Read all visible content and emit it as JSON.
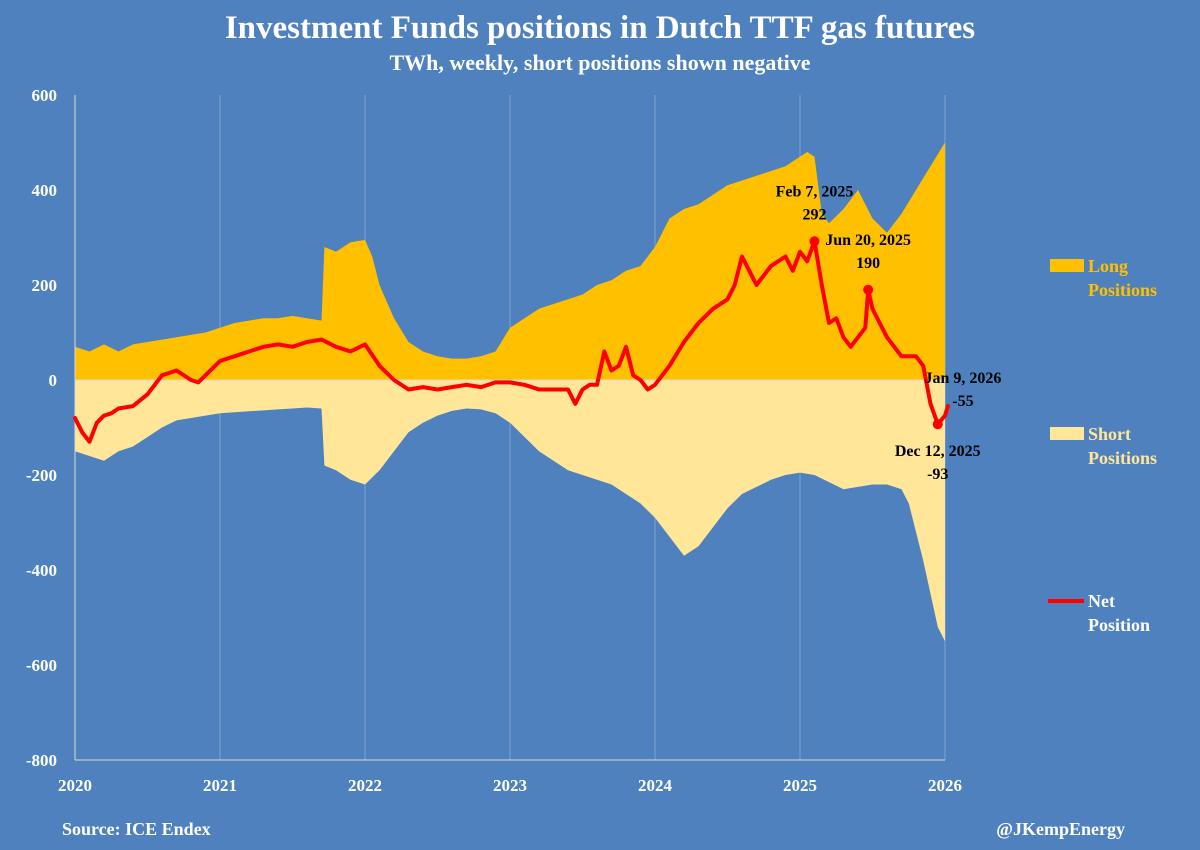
{
  "header": {
    "title": "Investment Funds positions in Dutch TTF gas futures",
    "subtitle": "TWh, weekly, short positions shown negative"
  },
  "footer": {
    "source": "Source: ICE Endex",
    "credit": "@JKempEnergy"
  },
  "legend": {
    "long_line1": "Long",
    "long_line2": "Positions",
    "short_line1": "Short",
    "short_line2": "Positions",
    "net_line1": "Net",
    "net_line2": "Position"
  },
  "annotations": [
    {
      "date_label": "Feb 7, 2025",
      "value_label": "292",
      "x": 2025.1,
      "y": 292
    },
    {
      "date_label": "Jun 20, 2025",
      "value_label": "190",
      "x": 2025.47,
      "y": 190
    },
    {
      "date_label": "Dec 12, 2025",
      "value_label": "-93",
      "x": 2025.95,
      "y": -93
    },
    {
      "date_label": "Jan 9, 2026",
      "value_label": "-55",
      "x": 2026.02,
      "y": -55
    }
  ],
  "colors": {
    "background": "#4e81bd",
    "long": "#ffc000",
    "short": "#ffe699",
    "net": "#ff0000",
    "text": "#ffffff",
    "grid": "#7ea2cf",
    "legend_long_text": "#ffc000",
    "legend_short_text": "#ffe699",
    "legend_net_text": "#ffffff"
  },
  "chart_data": {
    "type": "area",
    "title": "Investment Funds positions in Dutch TTF gas futures",
    "subtitle": "TWh, weekly, short positions shown negative",
    "xlim": [
      2020,
      2026
    ],
    "ylim": [
      -800,
      600
    ],
    "x_ticks": [
      2020,
      2021,
      2022,
      2023,
      2024,
      2025,
      2026
    ],
    "x_tick_labels": [
      "2020",
      "2021",
      "2022",
      "2023",
      "2024",
      "2025",
      "2026"
    ],
    "y_ticks": [
      -800,
      -600,
      -400,
      -200,
      0,
      200,
      400,
      600
    ],
    "y_tick_labels": [
      "-800",
      "-600",
      "-400",
      "-200",
      "0",
      "200",
      "400",
      "600"
    ],
    "grid": "vertical",
    "legend_position": "right",
    "series": [
      {
        "name": "Long Positions",
        "type": "area",
        "x": [
          2020.0,
          2020.1,
          2020.2,
          2020.3,
          2020.4,
          2020.5,
          2020.6,
          2020.7,
          2020.8,
          2020.9,
          2021.0,
          2021.1,
          2021.2,
          2021.3,
          2021.4,
          2021.5,
          2021.6,
          2021.7,
          2021.72,
          2021.8,
          2021.9,
          2022.0,
          2022.05,
          2022.1,
          2022.2,
          2022.3,
          2022.4,
          2022.5,
          2022.6,
          2022.7,
          2022.8,
          2022.9,
          2023.0,
          2023.1,
          2023.2,
          2023.3,
          2023.4,
          2023.5,
          2023.6,
          2023.7,
          2023.8,
          2023.9,
          2024.0,
          2024.1,
          2024.2,
          2024.3,
          2024.4,
          2024.5,
          2024.6,
          2024.7,
          2024.8,
          2024.9,
          2025.0,
          2025.05,
          2025.1,
          2025.15,
          2025.2,
          2025.3,
          2025.4,
          2025.5,
          2025.6,
          2025.7,
          2025.8,
          2025.9,
          2026.0
        ],
        "values": [
          70,
          60,
          75,
          60,
          75,
          80,
          85,
          90,
          95,
          100,
          110,
          120,
          125,
          130,
          130,
          135,
          130,
          125,
          280,
          270,
          290,
          295,
          260,
          200,
          130,
          80,
          60,
          50,
          45,
          45,
          50,
          60,
          110,
          130,
          150,
          160,
          170,
          180,
          200,
          210,
          230,
          240,
          280,
          340,
          360,
          370,
          390,
          410,
          420,
          430,
          440,
          450,
          470,
          480,
          470,
          350,
          330,
          360,
          400,
          340,
          310,
          350,
          400,
          450,
          500
        ]
      },
      {
        "name": "Short Positions",
        "type": "area",
        "x": [
          2020.0,
          2020.1,
          2020.2,
          2020.3,
          2020.4,
          2020.5,
          2020.6,
          2020.7,
          2020.8,
          2020.9,
          2021.0,
          2021.1,
          2021.2,
          2021.3,
          2021.4,
          2021.5,
          2021.6,
          2021.7,
          2021.72,
          2021.8,
          2021.9,
          2022.0,
          2022.1,
          2022.2,
          2022.3,
          2022.4,
          2022.5,
          2022.6,
          2022.7,
          2022.8,
          2022.9,
          2023.0,
          2023.1,
          2023.2,
          2023.3,
          2023.4,
          2023.5,
          2023.6,
          2023.7,
          2023.8,
          2023.9,
          2024.0,
          2024.1,
          2024.2,
          2024.3,
          2024.4,
          2024.5,
          2024.6,
          2024.7,
          2024.8,
          2024.9,
          2025.0,
          2025.1,
          2025.2,
          2025.3,
          2025.4,
          2025.5,
          2025.6,
          2025.7,
          2025.75,
          2025.8,
          2025.85,
          2025.9,
          2025.95,
          2026.0
        ],
        "values": [
          -150,
          -160,
          -170,
          -150,
          -140,
          -120,
          -100,
          -85,
          -80,
          -75,
          -70,
          -68,
          -66,
          -64,
          -62,
          -60,
          -58,
          -60,
          -180,
          -190,
          -210,
          -220,
          -190,
          -150,
          -110,
          -90,
          -75,
          -65,
          -60,
          -62,
          -70,
          -90,
          -120,
          -150,
          -170,
          -190,
          -200,
          -210,
          -220,
          -240,
          -260,
          -290,
          -330,
          -370,
          -350,
          -310,
          -270,
          -240,
          -225,
          -210,
          -200,
          -195,
          -200,
          -215,
          -230,
          -225,
          -220,
          -220,
          -230,
          -260,
          -320,
          -380,
          -450,
          -520,
          -550
        ]
      },
      {
        "name": "Net Position",
        "type": "line",
        "x": [
          2020.0,
          2020.05,
          2020.1,
          2020.15,
          2020.2,
          2020.25,
          2020.3,
          2020.4,
          2020.5,
          2020.6,
          2020.7,
          2020.8,
          2020.85,
          2020.9,
          2021.0,
          2021.1,
          2021.2,
          2021.3,
          2021.4,
          2021.5,
          2021.6,
          2021.7,
          2021.8,
          2021.9,
          2022.0,
          2022.1,
          2022.2,
          2022.3,
          2022.4,
          2022.5,
          2022.6,
          2022.7,
          2022.8,
          2022.9,
          2023.0,
          2023.1,
          2023.2,
          2023.3,
          2023.4,
          2023.45,
          2023.5,
          2023.55,
          2023.6,
          2023.65,
          2023.7,
          2023.75,
          2023.8,
          2023.85,
          2023.9,
          2023.95,
          2024.0,
          2024.1,
          2024.2,
          2024.3,
          2024.4,
          2024.5,
          2024.55,
          2024.6,
          2024.65,
          2024.7,
          2024.8,
          2024.9,
          2024.95,
          2025.0,
          2025.05,
          2025.1,
          2025.15,
          2025.2,
          2025.25,
          2025.3,
          2025.35,
          2025.4,
          2025.45,
          2025.47,
          2025.5,
          2025.55,
          2025.6,
          2025.7,
          2025.8,
          2025.85,
          2025.9,
          2025.95,
          2026.0,
          2026.02
        ],
        "values": [
          -80,
          -110,
          -130,
          -90,
          -75,
          -70,
          -60,
          -55,
          -30,
          10,
          20,
          0,
          -5,
          10,
          40,
          50,
          60,
          70,
          75,
          70,
          80,
          85,
          70,
          60,
          75,
          30,
          0,
          -20,
          -15,
          -20,
          -15,
          -10,
          -15,
          -5,
          -5,
          -10,
          -20,
          -20,
          -20,
          -50,
          -20,
          -10,
          -10,
          60,
          20,
          30,
          70,
          10,
          0,
          -20,
          -10,
          30,
          80,
          120,
          150,
          170,
          200,
          260,
          230,
          200,
          240,
          260,
          230,
          270,
          250,
          292,
          200,
          120,
          130,
          90,
          70,
          90,
          110,
          190,
          150,
          120,
          90,
          50,
          50,
          30,
          -50,
          -93,
          -75,
          -55
        ]
      }
    ]
  }
}
